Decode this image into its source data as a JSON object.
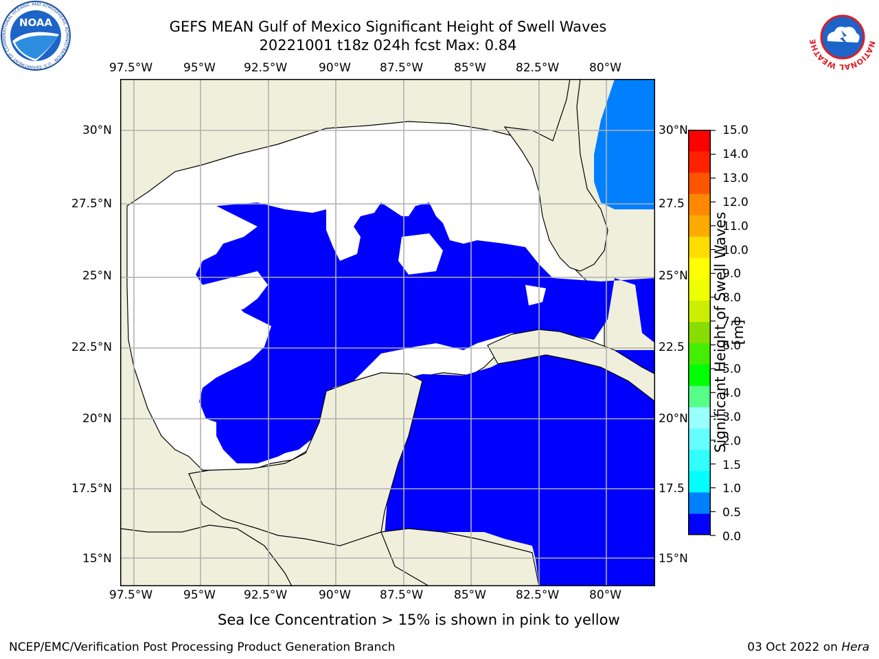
{
  "header": {
    "title_line1": "GEFS MEAN Gulf of Mexico Significant Height of Swell Waves",
    "title_line2": "20221001 t18z 024h fcst   Max: 0.84"
  },
  "logos": {
    "left_text": "NOAA",
    "left_ring_text": "NATIONAL OCEANIC AND ATMOSPHERIC ADMINISTRATION · U.S. DEPARTMENT OF COMMERCE",
    "right_ring_text": "NATIONAL WEATHER SERVICE"
  },
  "map": {
    "lon_ticks": [
      "97.5°W",
      "95°W",
      "92.5°W",
      "90°W",
      "87.5°W",
      "85°W",
      "82.5°W",
      "80°W"
    ],
    "lat_ticks_left": [
      "30°N",
      "27.5°N",
      "25°N",
      "22.5°N",
      "20°N",
      "17.5°N",
      "15°N"
    ],
    "lat_ticks_right": [
      "30°N",
      "27.5",
      "25°N",
      "22.5",
      "20°N",
      "17.5",
      "15°N"
    ],
    "colors": {
      "land": "#efefdc",
      "no_data": "#ffffff",
      "band_0_0_5": "#0000ff",
      "band_0_5_1_0": "#0080ff",
      "grid": "#b0b0b0"
    }
  },
  "colorbar": {
    "label": "Significant Height of Swell Waves [m]",
    "ticks": [
      "15.0",
      "14.0",
      "13.0",
      "12.0",
      "11.0",
      "10.0",
      "9.0",
      "8.0",
      "7.0",
      "6.0",
      "5.0",
      "4.0",
      "3.0",
      "2.0",
      "1.5",
      "1.0",
      "0.5",
      "0.0"
    ],
    "colors": [
      "#0000ff",
      "#0080ff",
      "#00ffff",
      "#33ffff",
      "#66ffff",
      "#99ffff",
      "#55ff88",
      "#00ff00",
      "#44ee00",
      "#88dd00",
      "#ccee00",
      "#eeff00",
      "#ffff00",
      "#ffdd00",
      "#ffaa00",
      "#ff8800",
      "#ff5500",
      "#ff2200",
      "#ff0000"
    ]
  },
  "notes": {
    "sea_ice": "Sea Ice Concentration > 15% is shown in pink to yellow"
  },
  "footer": {
    "left": "NCEP/EMC/Verification Post Processing Product Generation Branch",
    "right_prefix": "03 Oct 2022 on ",
    "right_host": "Hera"
  }
}
